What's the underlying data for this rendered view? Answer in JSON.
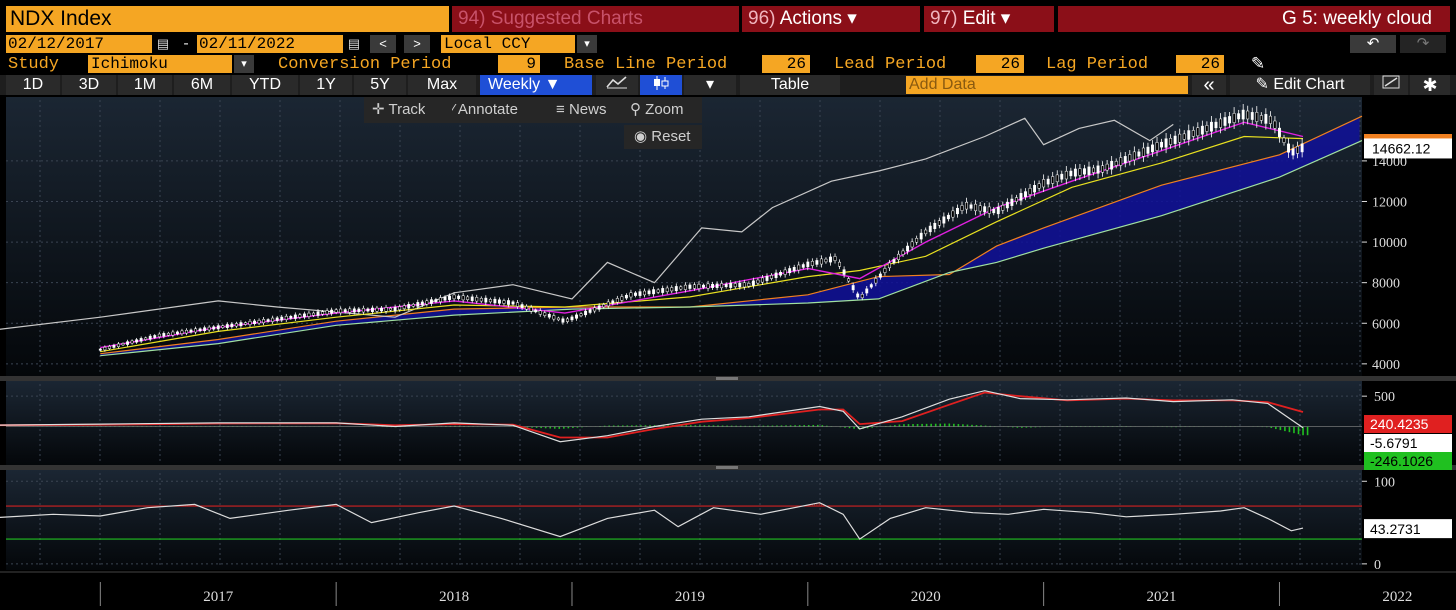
{
  "header": {
    "ticker": "NDX Index",
    "suggested": {
      "num": "94)",
      "label": "Suggested Charts"
    },
    "actions": {
      "num": "96)",
      "label": "Actions",
      "caret": "▾"
    },
    "edit": {
      "num": "97)",
      "label": "Edit",
      "caret": "▾"
    },
    "title": "G 5: weekly cloud"
  },
  "range": {
    "start": "02/12/2017",
    "separator": "-",
    "end": "02/11/2022",
    "calendar_icon": "calendar-icon",
    "prev": "<",
    "next": ">",
    "currency": "Local CCY",
    "dropdown": "▾",
    "undo": "↶",
    "redo": "↷"
  },
  "study": {
    "label": "Study",
    "value": "Ichimoku",
    "conversion_label": "Conversion Period",
    "conversion_value": "9",
    "base_label": "Base Line Period",
    "base_value": "26",
    "lead_label": "Lead Period",
    "lead_value": "26",
    "lag_label": "Lag Period",
    "lag_value": "26",
    "pen_icon": "✎"
  },
  "toolbar": {
    "periods": [
      "1D",
      "3D",
      "1M",
      "6M",
      "YTD",
      "1Y",
      "5Y",
      "Max"
    ],
    "frequency": "Weekly",
    "table": "Table",
    "add_data_placeholder": "Add Data",
    "collapse": "«",
    "edit_chart": "Edit Chart",
    "pen": "✎"
  },
  "float_menu": {
    "track": "Track",
    "annotate": "Annotate",
    "news": "News",
    "zoom": "Zoom",
    "reset": "Reset"
  },
  "colors": {
    "accent": "#f5a623",
    "menu_red": "#8b0f18",
    "price": "#ffffff",
    "conversion": "#e020e0",
    "base": "#e8e020",
    "lead_a": "#f08020",
    "lead_b": "#a0e0a0",
    "cloud": "#10109a",
    "lag": "#c8c8c8",
    "macd_signal": "#e02020",
    "macd_hist": "#20c020"
  },
  "chart_data": [
    {
      "type": "line",
      "panel": "price",
      "y_ticks": [
        4000,
        6000,
        8000,
        10000,
        12000,
        14000
      ],
      "ylim": [
        3500,
        17000
      ],
      "x_labels": [
        "2017",
        "2018",
        "2019",
        "2020",
        "2021",
        "2022"
      ],
      "last_value": "14662.12",
      "series": [
        {
          "name": "",
          "role": "price",
          "points": [
            [
              2017.0,
              4700
            ],
            [
              2017.25,
              5400
            ],
            [
              2017.5,
              5800
            ],
            [
              2017.75,
              6200
            ],
            [
              2018.0,
              6600
            ],
            [
              2018.25,
              6700
            ],
            [
              2018.5,
              7300
            ],
            [
              2018.75,
              7000
            ],
            [
              2018.97,
              6100
            ],
            [
              2019.25,
              7400
            ],
            [
              2019.5,
              7800
            ],
            [
              2019.75,
              7900
            ],
            [
              2020.0,
              8900
            ],
            [
              2020.12,
              9200
            ],
            [
              2020.22,
              7200
            ],
            [
              2020.35,
              8900
            ],
            [
              2020.5,
              10500
            ],
            [
              2020.67,
              11800
            ],
            [
              2020.8,
              11500
            ],
            [
              2021.0,
              12900
            ],
            [
              2021.12,
              13400
            ],
            [
              2021.25,
              13600
            ],
            [
              2021.5,
              14800
            ],
            [
              2021.67,
              15500
            ],
            [
              2021.85,
              16300
            ],
            [
              2021.97,
              16000
            ],
            [
              2022.05,
              14400
            ],
            [
              2022.1,
              14662
            ]
          ]
        },
        {
          "name": "",
          "role": "conversion",
          "points": [
            [
              2017.0,
              4800
            ],
            [
              2017.5,
              5800
            ],
            [
              2018.0,
              6500
            ],
            [
              2018.5,
              7100
            ],
            [
              2018.97,
              6500
            ],
            [
              2019.5,
              7600
            ],
            [
              2020.0,
              8700
            ],
            [
              2020.22,
              8200
            ],
            [
              2020.5,
              10000
            ],
            [
              2020.8,
              11700
            ],
            [
              2021.12,
              13000
            ],
            [
              2021.5,
              14500
            ],
            [
              2021.85,
              15900
            ],
            [
              2022.1,
              15200
            ]
          ]
        },
        {
          "name": "",
          "role": "base",
          "points": [
            [
              2017.0,
              4600
            ],
            [
              2017.5,
              5600
            ],
            [
              2018.0,
              6300
            ],
            [
              2018.5,
              6900
            ],
            [
              2018.97,
              6800
            ],
            [
              2019.5,
              7300
            ],
            [
              2020.0,
              8300
            ],
            [
              2020.22,
              8600
            ],
            [
              2020.5,
              9300
            ],
            [
              2020.8,
              11000
            ],
            [
              2021.12,
              12700
            ],
            [
              2021.5,
              13900
            ],
            [
              2021.85,
              15200
            ],
            [
              2022.1,
              15100
            ]
          ]
        },
        {
          "name": "",
          "role": "lead_a",
          "points": [
            [
              2017.0,
              4500
            ],
            [
              2017.5,
              5200
            ],
            [
              2018.0,
              6100
            ],
            [
              2018.5,
              6700
            ],
            [
              2019.0,
              6800
            ],
            [
              2019.5,
              6800
            ],
            [
              2020.0,
              7400
            ],
            [
              2020.3,
              8300
            ],
            [
              2020.6,
              8400
            ],
            [
              2020.8,
              9800
            ],
            [
              2021.0,
              10700
            ],
            [
              2021.5,
              12800
            ],
            [
              2022.0,
              14300
            ],
            [
              2022.35,
              16200
            ]
          ]
        },
        {
          "name": "",
          "role": "lead_b",
          "points": [
            [
              2017.0,
              4400
            ],
            [
              2017.5,
              5000
            ],
            [
              2018.0,
              5900
            ],
            [
              2018.5,
              6400
            ],
            [
              2019.0,
              6700
            ],
            [
              2019.5,
              6800
            ],
            [
              2020.0,
              7000
            ],
            [
              2020.3,
              7200
            ],
            [
              2020.6,
              8500
            ],
            [
              2020.8,
              9000
            ],
            [
              2021.0,
              9700
            ],
            [
              2021.5,
              11300
            ],
            [
              2022.0,
              13200
            ],
            [
              2022.35,
              15000
            ]
          ]
        },
        {
          "name": "",
          "role": "lag",
          "points": [
            [
              2016.5,
              5600
            ],
            [
              2017.0,
              6300
            ],
            [
              2017.5,
              7100
            ],
            [
              2017.75,
              6800
            ],
            [
              2018.25,
              6300
            ],
            [
              2018.5,
              7500
            ],
            [
              2018.75,
              7900
            ],
            [
              2019.0,
              7200
            ],
            [
              2019.15,
              9000
            ],
            [
              2019.35,
              8000
            ],
            [
              2019.55,
              10700
            ],
            [
              2019.72,
              10500
            ],
            [
              2019.85,
              11700
            ],
            [
              2020.1,
              13000
            ],
            [
              2020.3,
              13500
            ],
            [
              2020.5,
              14100
            ],
            [
              2020.75,
              15200
            ],
            [
              2020.92,
              16100
            ],
            [
              2021.0,
              14800
            ],
            [
              2021.15,
              15600
            ],
            [
              2021.3,
              16000
            ],
            [
              2021.45,
              15000
            ],
            [
              2021.55,
              15800
            ]
          ]
        }
      ]
    },
    {
      "type": "line",
      "panel": "macd",
      "y_ticks": [
        500
      ],
      "ylim": [
        -600,
        700
      ],
      "last_values": [
        "240.4235",
        "-5.6791",
        "-246.1026"
      ],
      "series": [
        {
          "name": "",
          "role": "macd",
          "points": [
            [
              2016.5,
              20
            ],
            [
              2017.0,
              40
            ],
            [
              2017.5,
              60
            ],
            [
              2018.0,
              60
            ],
            [
              2018.25,
              0
            ],
            [
              2018.5,
              60
            ],
            [
              2018.75,
              20
            ],
            [
              2018.95,
              -250
            ],
            [
              2019.15,
              -150
            ],
            [
              2019.35,
              0
            ],
            [
              2019.55,
              120
            ],
            [
              2019.75,
              160
            ],
            [
              2020.05,
              330
            ],
            [
              2020.15,
              250
            ],
            [
              2020.22,
              -40
            ],
            [
              2020.4,
              160
            ],
            [
              2020.6,
              450
            ],
            [
              2020.75,
              590
            ],
            [
              2020.9,
              460
            ],
            [
              2021.1,
              440
            ],
            [
              2021.35,
              470
            ],
            [
              2021.55,
              410
            ],
            [
              2021.8,
              440
            ],
            [
              2021.95,
              380
            ],
            [
              2022.1,
              -20
            ]
          ]
        },
        {
          "name": "",
          "role": "signal",
          "points": [
            [
              2016.5,
              20
            ],
            [
              2017.0,
              30
            ],
            [
              2017.5,
              50
            ],
            [
              2018.0,
              55
            ],
            [
              2018.25,
              20
            ],
            [
              2018.5,
              40
            ],
            [
              2018.75,
              30
            ],
            [
              2018.95,
              -180
            ],
            [
              2019.15,
              -180
            ],
            [
              2019.35,
              -40
            ],
            [
              2019.55,
              80
            ],
            [
              2019.75,
              140
            ],
            [
              2020.05,
              280
            ],
            [
              2020.15,
              280
            ],
            [
              2020.22,
              40
            ],
            [
              2020.4,
              90
            ],
            [
              2020.6,
              360
            ],
            [
              2020.75,
              560
            ],
            [
              2020.9,
              500
            ],
            [
              2021.1,
              430
            ],
            [
              2021.35,
              460
            ],
            [
              2021.55,
              430
            ],
            [
              2021.8,
              430
            ],
            [
              2021.95,
              400
            ],
            [
              2022.1,
              240
            ]
          ]
        }
      ]
    },
    {
      "type": "line",
      "panel": "rsi",
      "y_ticks": [
        0,
        100
      ],
      "ylim": [
        -5,
        110
      ],
      "reference_lines": [
        70,
        30
      ],
      "last_value": "43.2731",
      "series": [
        {
          "name": "",
          "role": "rsi",
          "points": [
            [
              2016.5,
              55
            ],
            [
              2016.8,
              60
            ],
            [
              2017.0,
              58
            ],
            [
              2017.2,
              68
            ],
            [
              2017.4,
              72
            ],
            [
              2017.55,
              55
            ],
            [
              2017.8,
              65
            ],
            [
              2018.0,
              72
            ],
            [
              2018.15,
              50
            ],
            [
              2018.35,
              62
            ],
            [
              2018.5,
              70
            ],
            [
              2018.7,
              55
            ],
            [
              2018.95,
              33
            ],
            [
              2019.15,
              55
            ],
            [
              2019.35,
              65
            ],
            [
              2019.45,
              45
            ],
            [
              2019.6,
              68
            ],
            [
              2019.8,
              60
            ],
            [
              2020.05,
              74
            ],
            [
              2020.15,
              60
            ],
            [
              2020.22,
              30
            ],
            [
              2020.35,
              55
            ],
            [
              2020.5,
              68
            ],
            [
              2020.7,
              62
            ],
            [
              2020.85,
              60
            ],
            [
              2021.0,
              66
            ],
            [
              2021.2,
              62
            ],
            [
              2021.35,
              57
            ],
            [
              2021.55,
              60
            ],
            [
              2021.75,
              64
            ],
            [
              2021.85,
              68
            ],
            [
              2021.95,
              55
            ],
            [
              2022.05,
              40
            ],
            [
              2022.1,
              43.27
            ]
          ]
        }
      ]
    }
  ]
}
